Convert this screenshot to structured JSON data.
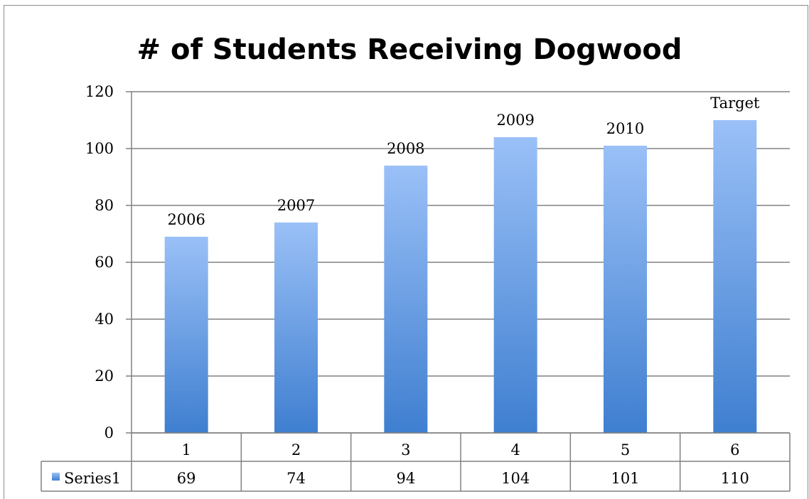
{
  "chart_data": {
    "type": "bar",
    "title": "# of Students Receiving Dogwood",
    "categories": [
      "1",
      "2",
      "3",
      "4",
      "5",
      "6"
    ],
    "series": [
      {
        "name": "Series1",
        "values": [
          69,
          74,
          94,
          104,
          101,
          110
        ]
      }
    ],
    "data_labels": [
      "2006",
      "2007",
      "2008",
      "2009",
      "2010",
      "Target"
    ],
    "yticks": [
      "0",
      "20",
      "40",
      "60",
      "80",
      "100",
      "120"
    ],
    "ylim": [
      0,
      120
    ],
    "xlabel": "",
    "ylabel": "",
    "grid": true,
    "data_table": true,
    "bar_color_top": "#9ac0f7",
    "bar_color_bottom": "#3f7fd0"
  }
}
